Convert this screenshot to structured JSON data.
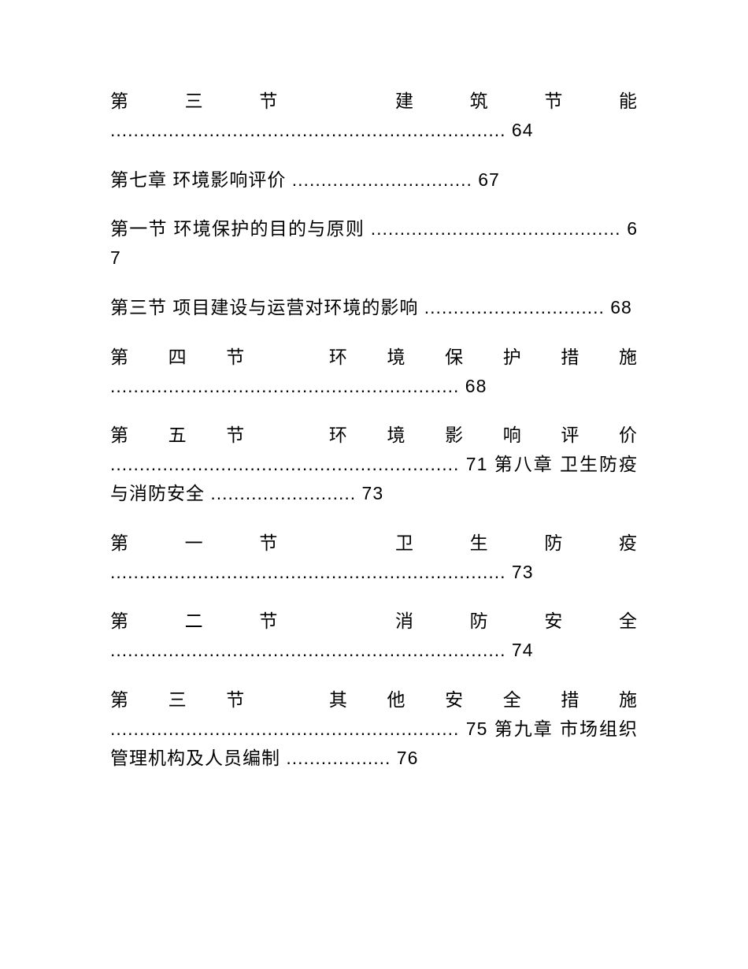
{
  "entries": [
    {
      "text": "第三节 建筑节能 .................................................................... 64"
    },
    {
      "text": "第七章 环境影响评价 ............................... 67"
    },
    {
      "text": "第一节 环境保护的目的与原则 ........................................... 67"
    },
    {
      "text": "第三节 项目建设与运营对环境的影响 ............................... 68"
    },
    {
      "text": "第四节 环境保护措施 ............................................................ 68"
    },
    {
      "text": "第五节 环境影响评价 ............................................................ 71 第八章 卫生防疫与消防安全 ......................... 73"
    },
    {
      "text": "第一节 卫生防疫 .................................................................... 73"
    },
    {
      "text": "第二节 消防安全 .................................................................... 74"
    },
    {
      "text": "第三节 其他安全措施 ............................................................ 75 第九章 市场组织管理机构及人员编制 .................. 76"
    }
  ],
  "style": {
    "background_color": "#ffffff",
    "text_color": "#000000",
    "font_size": 23
  }
}
